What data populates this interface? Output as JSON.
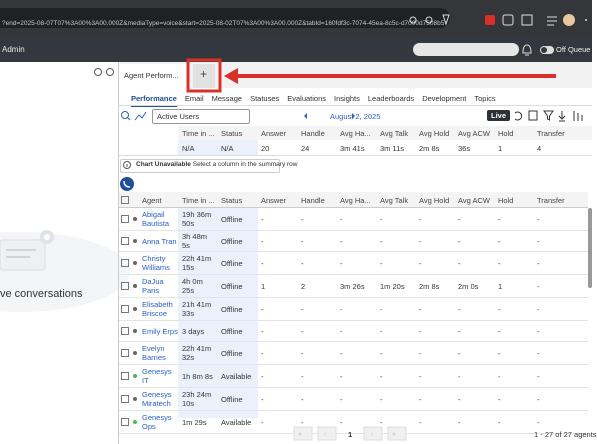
{
  "browser": {
    "url": "?end=2025-08-07T07%3A00%3A00.000Z&mediaType=voice&start=2025-08-02T07%3A00%3A00.000Z&tabId=160fdf3c-7074-45ea-8c5c-d7000d7508b5"
  },
  "header": {
    "title": "Admin",
    "status": "Off Queue"
  },
  "left_panel": {
    "text": "ve conversations"
  },
  "tabs": {
    "active": "Agent Perform...",
    "add": "+"
  },
  "subtabs": [
    "Performance",
    "Email",
    "Message",
    "Statuses",
    "Evaluations",
    "Insights",
    "Leaderboards",
    "Development",
    "Topics"
  ],
  "toolbar": {
    "filter": "Active Users",
    "date": "August 2, 2025",
    "live": "Live"
  },
  "summary": {
    "columns": [
      "Time in ...",
      "Status",
      "Answer",
      "Handle",
      "Avg Ha...",
      "Avg Talk",
      "Avg Hold",
      "Avg ACW",
      "Hold",
      "Transfer"
    ],
    "values": [
      "N/A",
      "N/A",
      "20",
      "24",
      "3m 41s",
      "3m 11s",
      "2m 8s",
      "36s",
      "1",
      "4"
    ]
  },
  "chart_notice": {
    "title": "Chart Unavailable",
    "text": "Select a column in the summary row"
  },
  "table": {
    "columns": [
      "Agent",
      "Time in ...",
      "Status",
      "Answer",
      "Handle",
      "Avg Ha...",
      "Avg Talk",
      "Avg Hold",
      "Avg ACW",
      "Hold",
      "Transfer"
    ],
    "rows": [
      {
        "agent": "Abigail Bautista",
        "time": "19h 36m 50s",
        "status": "Offline",
        "dot_color": "#666666",
        "cells": [
          "-",
          "-",
          "-",
          "-",
          "-",
          "-",
          "-",
          "-"
        ]
      },
      {
        "agent": "Anna Tran",
        "time": "3h 48m 5s",
        "status": "Offline",
        "dot_color": "#666666",
        "cells": [
          "-",
          "-",
          "-",
          "-",
          "-",
          "-",
          "-",
          "-"
        ]
      },
      {
        "agent": "Christy Williams",
        "time": "22h 41m 15s",
        "status": "Offline",
        "dot_color": "#666666",
        "cells": [
          "-",
          "-",
          "-",
          "-",
          "-",
          "-",
          "-",
          "-"
        ]
      },
      {
        "agent": "DaJua Paris",
        "time": "4h 0m 25s",
        "status": "Offline",
        "dot_color": "#666666",
        "cells": [
          "1",
          "2",
          "3m 26s",
          "1m 20s",
          "2m 8s",
          "2m 0s",
          "1",
          "-"
        ]
      },
      {
        "agent": "Elisabeth Briscoe",
        "time": "21h 41m 33s",
        "status": "Offline",
        "dot_color": "#666666",
        "cells": [
          "-",
          "-",
          "-",
          "-",
          "-",
          "-",
          "-",
          "-"
        ]
      },
      {
        "agent": "Emily Erps",
        "time": "3 days",
        "status": "Offline",
        "dot_color": "#666666",
        "cells": [
          "-",
          "-",
          "-",
          "-",
          "-",
          "-",
          "-",
          "-"
        ]
      },
      {
        "agent": "Evelyn Barnes",
        "time": "22h 41m 32s",
        "status": "Offline",
        "dot_color": "#666666",
        "cells": [
          "-",
          "-",
          "-",
          "-",
          "-",
          "-",
          "-",
          "-"
        ]
      },
      {
        "agent": "Genesys IT",
        "time": "1h 8m 8s",
        "status": "Available",
        "dot_color": "#4cbb5a",
        "cells": [
          "-",
          "-",
          "-",
          "-",
          "-",
          "-",
          "-",
          "-"
        ]
      },
      {
        "agent": "Genesys Miratech",
        "time": "23h 24m 10s",
        "status": "Offline",
        "dot_color": "#666666",
        "cells": [
          "-",
          "-",
          "-",
          "-",
          "-",
          "-",
          "-",
          "-"
        ]
      },
      {
        "agent": "Genesys Ops",
        "time": "1m 29s",
        "status": "Available",
        "dot_color": "#4cbb5a",
        "cells": [
          "-",
          "-",
          "-",
          "-",
          "-",
          "-",
          "-",
          "-"
        ]
      }
    ]
  },
  "pagination": {
    "page": "1",
    "summary": "1 - 27 of 27 agents"
  }
}
